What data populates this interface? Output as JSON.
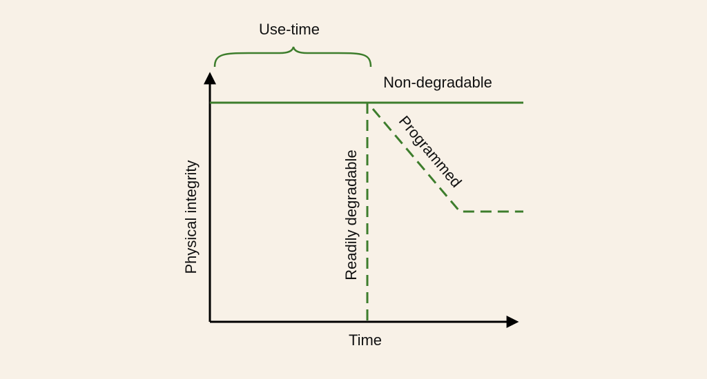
{
  "brace_label": "Use-time",
  "y_axis_label": "Physical integrity",
  "x_axis_label": "Time",
  "curves": [
    {
      "label": "Non-degradable"
    },
    {
      "label": "Readily degradable"
    },
    {
      "label": "Programmed"
    }
  ]
}
